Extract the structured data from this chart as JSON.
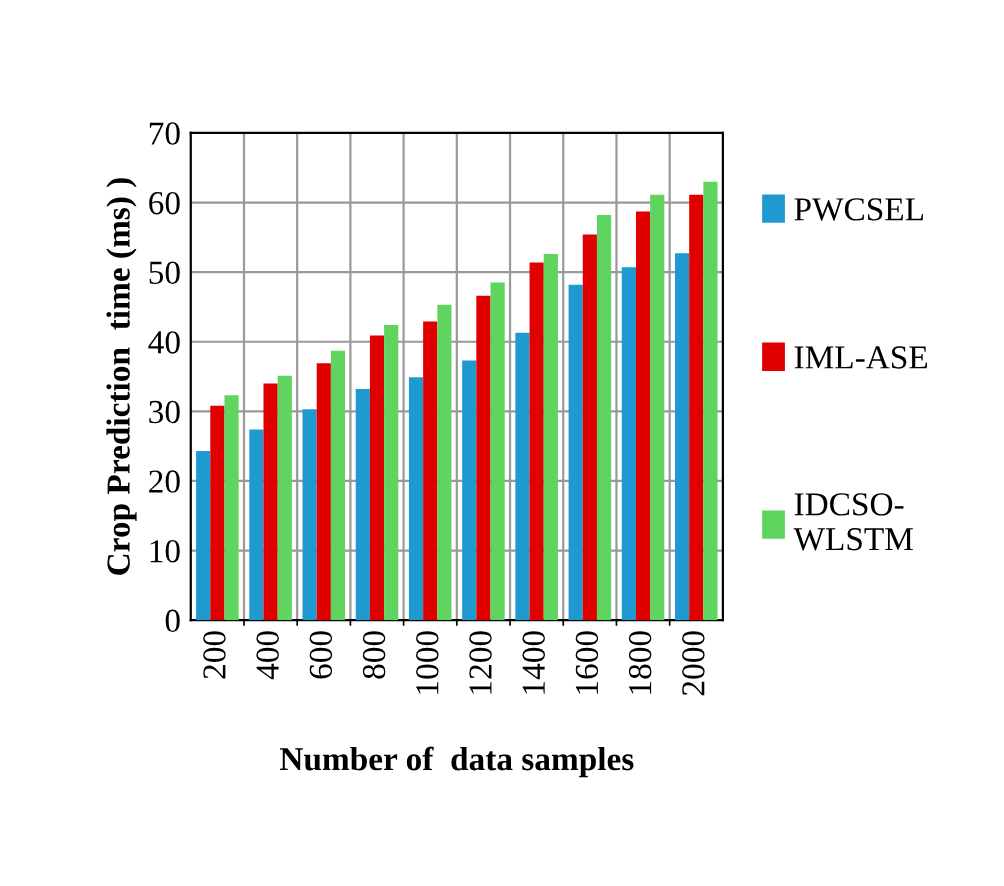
{
  "chart_data": {
    "type": "bar",
    "xlabel": "Number of  data samples",
    "ylabel": "Crop Prediction  time (ms) )",
    "categories": [
      "200",
      "400",
      "600",
      "800",
      "1000",
      "1200",
      "1400",
      "1600",
      "1800",
      "2000"
    ],
    "series": [
      {
        "name": "PWCSEL",
        "color": "#1f9ad0",
        "values": [
          24.3,
          27.4,
          30.3,
          33.2,
          34.9,
          37.3,
          41.3,
          48.2,
          50.7,
          52.7
        ]
      },
      {
        "name": "IML-ASE",
        "color": "#e00000",
        "values": [
          30.8,
          34.0,
          36.9,
          40.9,
          42.9,
          46.6,
          51.4,
          55.4,
          58.7,
          61.1
        ]
      },
      {
        "name": "IDCSO-\nWLSTM",
        "color": "#5fd45f",
        "values": [
          32.3,
          35.1,
          38.7,
          42.4,
          45.3,
          48.5,
          52.6,
          58.2,
          61.1,
          63.0
        ]
      }
    ],
    "ylim": [
      0,
      70
    ],
    "yticks": [
      0,
      10,
      20,
      30,
      40,
      50,
      60,
      70
    ],
    "grid": true,
    "legend": "right"
  }
}
